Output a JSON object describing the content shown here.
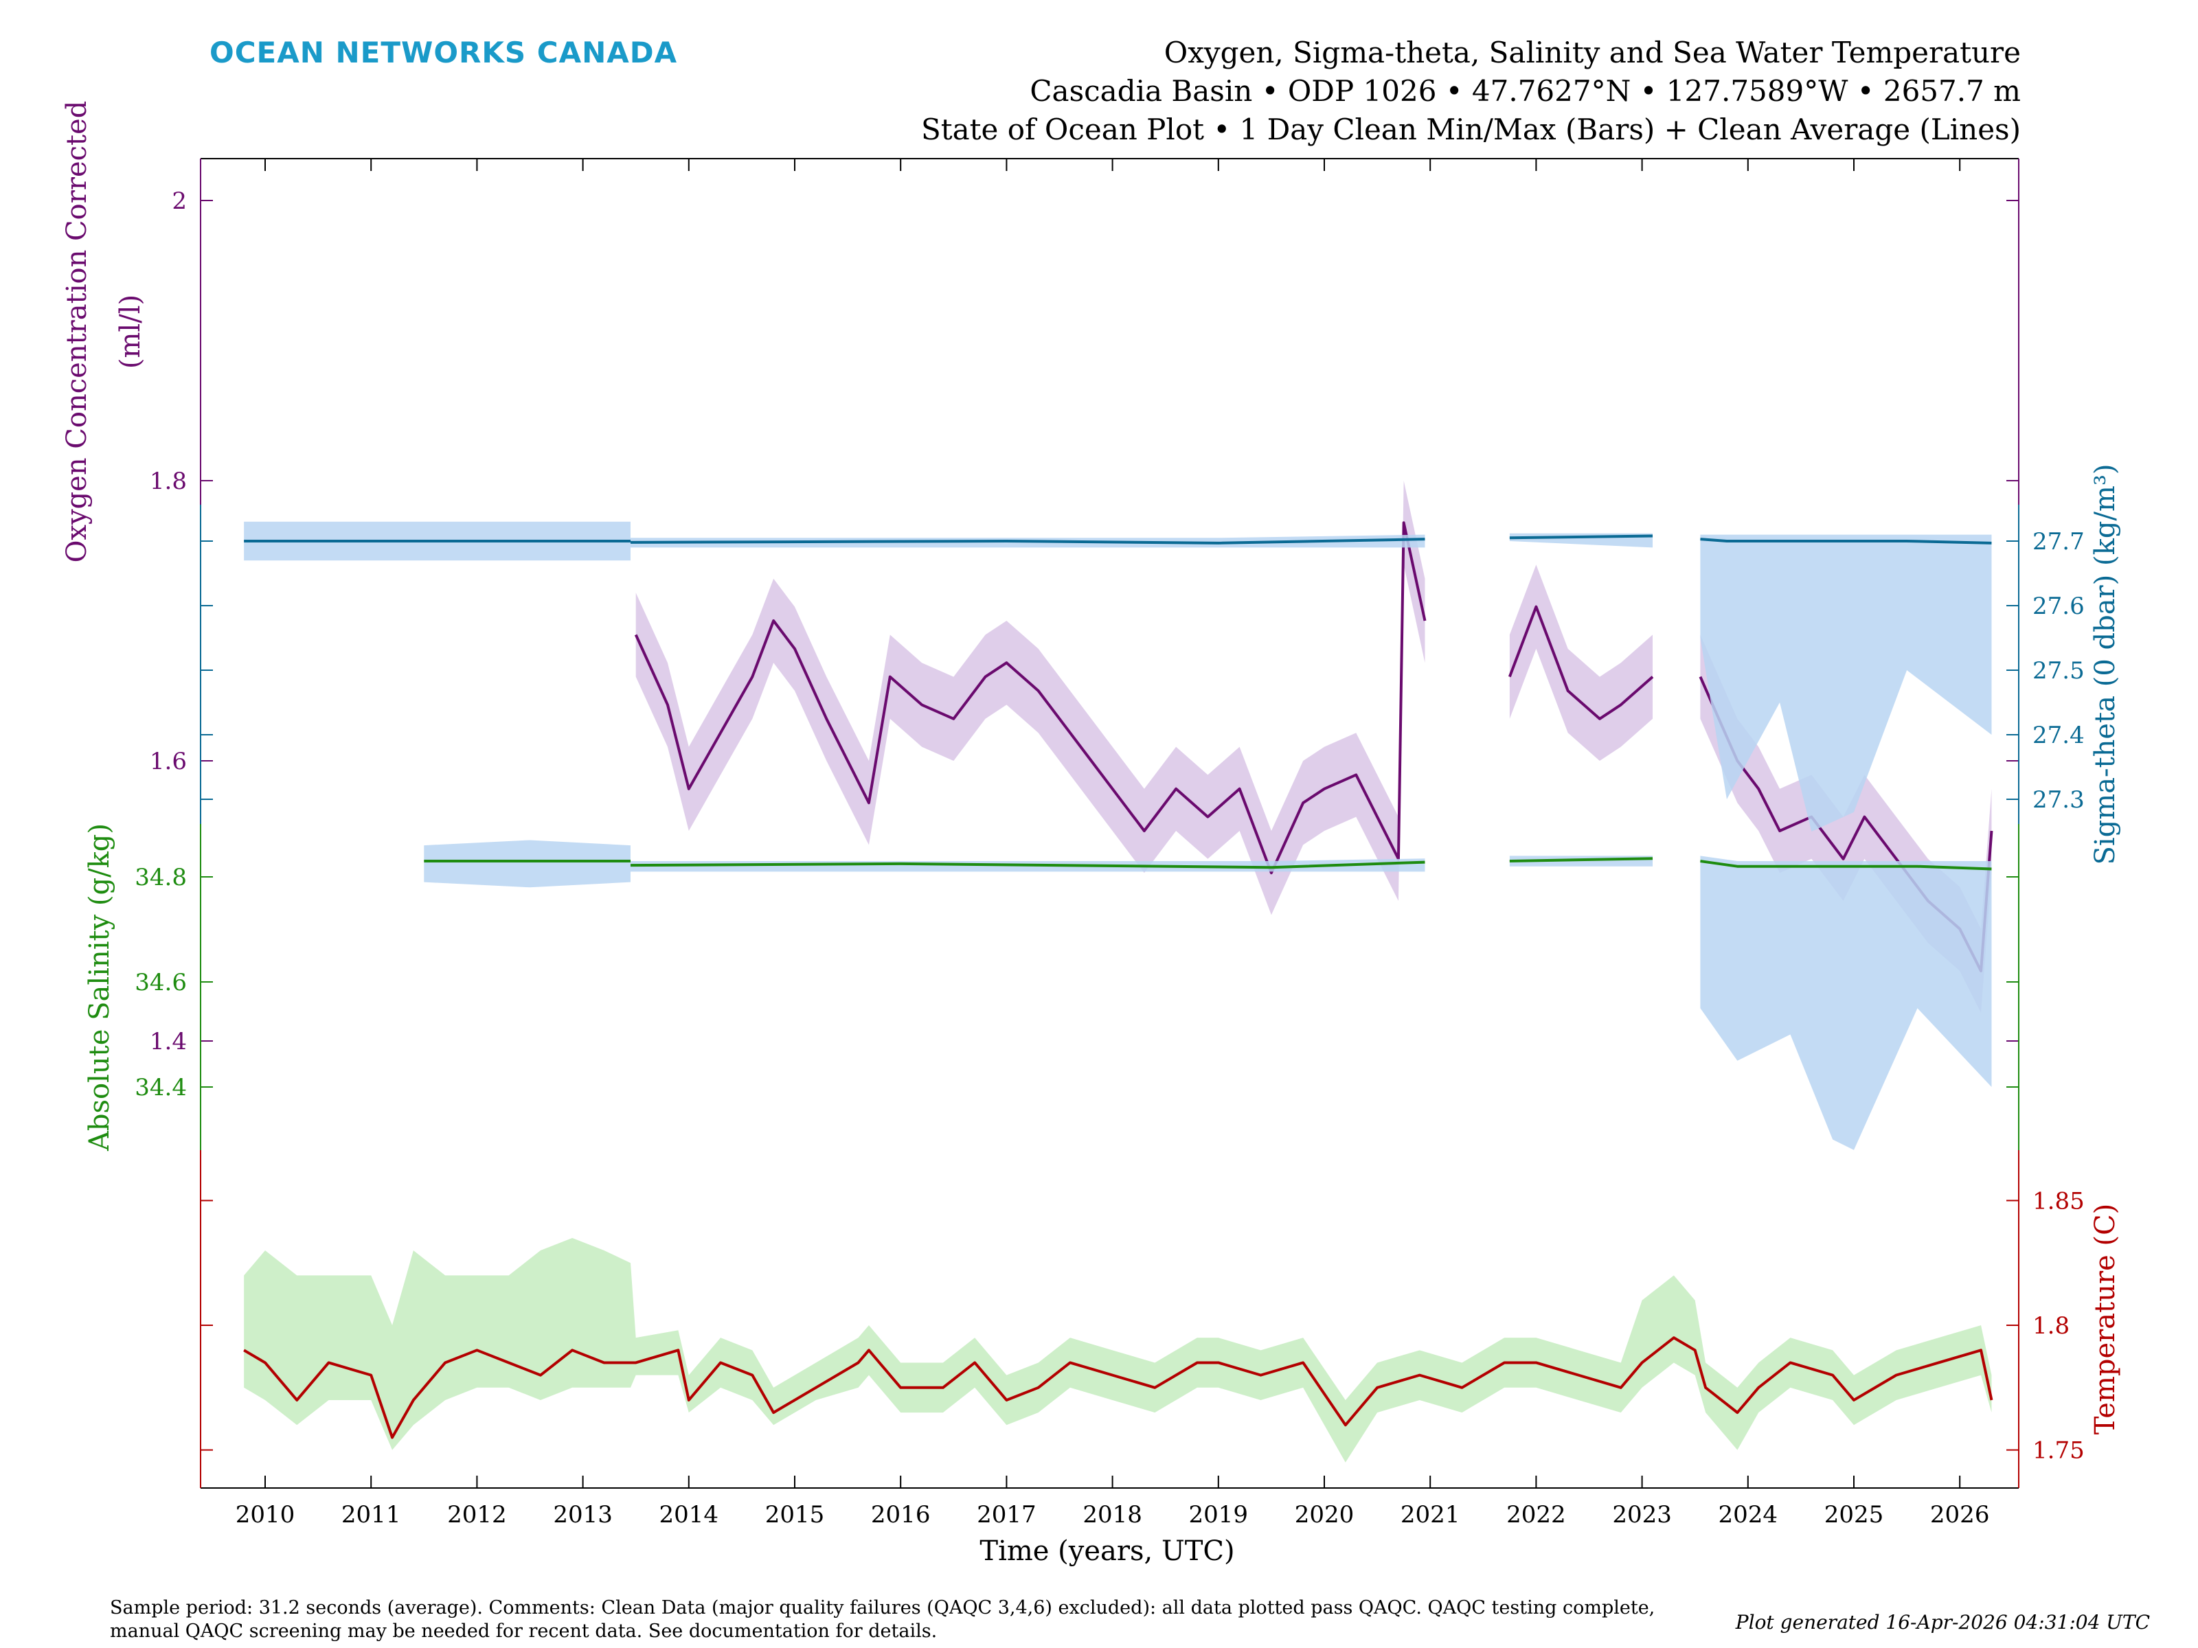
{
  "brand": "OCEAN NETWORKS CANADA",
  "titles": [
    "Oxygen, Sigma-theta, Salinity and Sea Water Temperature",
    "Cascadia Basin • ODP 1026 • 47.7627°N • 127.7589°W • 2657.7 m",
    "State of Ocean Plot • 1 Day Clean Min/Max (Bars) + Clean Average (Lines)"
  ],
  "footer": {
    "comment_line1": "Sample period: 31.2 seconds (average). Comments: Clean Data (major quality failures (QAQC 3,4,6) excluded): all data plotted pass QAQC. QAQC testing complete,",
    "comment_line2": "manual QAQC screening may be needed for recent data. See documentation for details.",
    "generated": "Plot generated 16-Apr-2026 04:31:04 UTC"
  },
  "chart_data": {
    "type": "line",
    "xlabel": "Time (years, UTC)",
    "xticks": [
      "2010",
      "2011",
      "2012",
      "2013",
      "2014",
      "2015",
      "2016",
      "2017",
      "2018",
      "2019",
      "2020",
      "2021",
      "2022",
      "2023",
      "2024",
      "2025",
      "2026"
    ],
    "xlim": [
      2009.4,
      2026.6
    ],
    "colors": {
      "oxygen": "#6a0a6e",
      "sigma": "#0a6a94",
      "salinity": "#1e8c10",
      "temperature": "#b30000",
      "band_blue": "#b9d5f2",
      "band_green": "#c6ecbf",
      "band_purple": "#d9c6e6",
      "brand": "#1a9ac9"
    },
    "axes": [
      {
        "key": "oxygen",
        "side": "left",
        "label": [
          "Oxygen Concentration Corrected",
          "(ml/l)"
        ],
        "ticks": [
          "1.4",
          "1.6",
          "1.8",
          "2"
        ],
        "band": "band_purple",
        "segments": [
          [
            [
              2013.5,
              1.69
            ],
            [
              2013.8,
              1.64
            ],
            [
              2014.0,
              1.58
            ],
            [
              2014.3,
              1.62
            ],
            [
              2014.6,
              1.66
            ],
            [
              2014.8,
              1.7
            ],
            [
              2015.0,
              1.68
            ],
            [
              2015.3,
              1.63
            ],
            [
              2015.5,
              1.6
            ],
            [
              2015.7,
              1.57
            ],
            [
              2015.9,
              1.66
            ],
            [
              2016.2,
              1.64
            ],
            [
              2016.5,
              1.63
            ],
            [
              2016.8,
              1.66
            ],
            [
              2017.0,
              1.67
            ],
            [
              2017.3,
              1.65
            ],
            [
              2017.6,
              1.62
            ],
            [
              2017.8,
              1.6
            ],
            [
              2018.0,
              1.58
            ],
            [
              2018.3,
              1.55
            ],
            [
              2018.6,
              1.58
            ],
            [
              2018.9,
              1.56
            ],
            [
              2019.2,
              1.58
            ],
            [
              2019.5,
              1.52
            ],
            [
              2019.8,
              1.57
            ],
            [
              2020.0,
              1.58
            ],
            [
              2020.3,
              1.59
            ],
            [
              2020.5,
              1.56
            ],
            [
              2020.7,
              1.53
            ],
            [
              2020.75,
              1.77
            ],
            [
              2020.95,
              1.7
            ]
          ],
          [
            [
              2021.75,
              1.66
            ],
            [
              2022.0,
              1.71
            ],
            [
              2022.3,
              1.65
            ],
            [
              2022.6,
              1.63
            ],
            [
              2022.8,
              1.64
            ],
            [
              2023.1,
              1.66
            ]
          ],
          [
            [
              2023.55,
              1.66
            ],
            [
              2023.9,
              1.6
            ],
            [
              2024.1,
              1.58
            ],
            [
              2024.3,
              1.55
            ],
            [
              2024.6,
              1.56
            ],
            [
              2024.9,
              1.53
            ],
            [
              2025.1,
              1.56
            ],
            [
              2025.4,
              1.53
            ],
            [
              2025.7,
              1.5
            ],
            [
              2026.0,
              1.48
            ],
            [
              2026.2,
              1.45
            ],
            [
              2026.3,
              1.55
            ]
          ]
        ],
        "spread": 0.03
      },
      {
        "key": "sigma",
        "side": "right",
        "label": [
          "Sigma-theta (0 dbar) (kg/m³)"
        ],
        "ticks": [
          "27.3",
          "27.4",
          "27.5",
          "27.6",
          "27.7"
        ],
        "band": "band_blue",
        "segments": [
          [
            [
              2009.8,
              27.7,
              27.67,
              27.73
            ],
            [
              2011.0,
              27.7,
              27.67,
              27.73
            ],
            [
              2012.0,
              27.7,
              27.67,
              27.73
            ],
            [
              2013.45,
              27.7,
              27.67,
              27.73
            ]
          ],
          [
            [
              2013.45,
              27.698,
              27.69,
              27.705
            ],
            [
              2017.0,
              27.7,
              27.69,
              27.705
            ],
            [
              2019.0,
              27.697,
              27.69,
              27.705
            ],
            [
              2020.95,
              27.703,
              27.69,
              27.71
            ]
          ],
          [
            [
              2021.75,
              27.705,
              27.7,
              27.712
            ],
            [
              2023.1,
              27.708,
              27.69,
              27.712
            ]
          ],
          [
            [
              2023.55,
              27.703,
              27.55,
              27.71
            ],
            [
              2023.8,
              27.7,
              27.3,
              27.71
            ],
            [
              2024.3,
              27.7,
              27.45,
              27.71
            ],
            [
              2024.6,
              27.7,
              27.25,
              27.71
            ],
            [
              2025.0,
              27.7,
              27.28,
              27.71
            ],
            [
              2025.5,
              27.7,
              27.5,
              27.71
            ],
            [
              2026.3,
              27.697,
              27.4,
              27.71
            ]
          ]
        ]
      },
      {
        "key": "salinity",
        "side": "left",
        "label": [
          "Absolute Salinity (g/kg)"
        ],
        "ticks": [
          "34.4",
          "34.6",
          "34.8"
        ],
        "band": "band_blue",
        "segments": [
          [
            [
              2011.5,
              34.83,
              34.79,
              34.86
            ],
            [
              2012.5,
              34.83,
              34.78,
              34.87
            ],
            [
              2013.45,
              34.83,
              34.79,
              34.86
            ]
          ],
          [
            [
              2013.45,
              34.822,
              34.81,
              34.83
            ],
            [
              2016.0,
              34.825,
              34.81,
              34.83
            ],
            [
              2019.5,
              34.818,
              34.81,
              34.83
            ],
            [
              2020.95,
              34.828,
              34.81,
              34.835
            ]
          ],
          [
            [
              2021.75,
              34.83,
              34.82,
              34.84
            ],
            [
              2023.1,
              34.835,
              34.82,
              34.84
            ]
          ],
          [
            [
              2023.55,
              34.83,
              34.55,
              34.84
            ],
            [
              2023.9,
              34.82,
              34.45,
              34.83
            ],
            [
              2024.4,
              34.82,
              34.5,
              34.83
            ],
            [
              2024.8,
              34.82,
              34.3,
              34.83
            ],
            [
              2025.0,
              34.82,
              34.28,
              34.83
            ],
            [
              2025.6,
              34.82,
              34.55,
              34.83
            ],
            [
              2026.3,
              34.815,
              34.4,
              34.83
            ]
          ]
        ]
      },
      {
        "key": "temperature",
        "side": "right",
        "label": [
          "Temperature (C)"
        ],
        "ticks": [
          "1.75",
          "1.8",
          "1.85"
        ],
        "band": "band_green",
        "segments": [
          [
            [
              2009.8,
              1.79,
              1.775,
              1.82
            ],
            [
              2010.0,
              1.785,
              1.77,
              1.83
            ],
            [
              2010.3,
              1.77,
              1.76,
              1.82
            ],
            [
              2010.6,
              1.785,
              1.77,
              1.82
            ],
            [
              2011.0,
              1.78,
              1.77,
              1.82
            ],
            [
              2011.2,
              1.755,
              1.75,
              1.8
            ],
            [
              2011.4,
              1.77,
              1.76,
              1.83
            ],
            [
              2011.7,
              1.785,
              1.77,
              1.82
            ],
            [
              2012.0,
              1.79,
              1.775,
              1.82
            ],
            [
              2012.3,
              1.785,
              1.775,
              1.82
            ],
            [
              2012.6,
              1.78,
              1.77,
              1.83
            ],
            [
              2012.9,
              1.79,
              1.775,
              1.835
            ],
            [
              2013.2,
              1.785,
              1.775,
              1.83
            ],
            [
              2013.45,
              1.785,
              1.775,
              1.825
            ],
            [
              2013.5,
              1.785,
              1.78,
              1.795
            ],
            [
              2013.9,
              1.79,
              1.78,
              1.798
            ],
            [
              2014.0,
              1.77,
              1.765,
              1.78
            ],
            [
              2014.3,
              1.785,
              1.775,
              1.795
            ],
            [
              2014.6,
              1.78,
              1.77,
              1.79
            ],
            [
              2014.8,
              1.765,
              1.76,
              1.775
            ],
            [
              2015.2,
              1.775,
              1.77,
              1.785
            ],
            [
              2015.6,
              1.785,
              1.775,
              1.795
            ],
            [
              2015.7,
              1.79,
              1.78,
              1.8
            ],
            [
              2016.0,
              1.775,
              1.765,
              1.785
            ],
            [
              2016.4,
              1.775,
              1.765,
              1.785
            ],
            [
              2016.7,
              1.785,
              1.775,
              1.795
            ],
            [
              2017.0,
              1.77,
              1.76,
              1.78
            ],
            [
              2017.3,
              1.775,
              1.765,
              1.785
            ],
            [
              2017.6,
              1.785,
              1.775,
              1.795
            ],
            [
              2018.0,
              1.78,
              1.77,
              1.79
            ],
            [
              2018.4,
              1.775,
              1.765,
              1.785
            ],
            [
              2018.8,
              1.785,
              1.775,
              1.795
            ],
            [
              2019.0,
              1.785,
              1.775,
              1.795
            ],
            [
              2019.4,
              1.78,
              1.77,
              1.79
            ],
            [
              2019.8,
              1.785,
              1.775,
              1.795
            ],
            [
              2020.2,
              1.76,
              1.745,
              1.77
            ],
            [
              2020.5,
              1.775,
              1.765,
              1.785
            ],
            [
              2020.9,
              1.78,
              1.77,
              1.79
            ],
            [
              2021.3,
              1.775,
              1.765,
              1.785
            ],
            [
              2021.7,
              1.785,
              1.775,
              1.795
            ],
            [
              2022.0,
              1.785,
              1.775,
              1.795
            ],
            [
              2022.4,
              1.78,
              1.77,
              1.79
            ],
            [
              2022.8,
              1.775,
              1.765,
              1.785
            ],
            [
              2023.0,
              1.785,
              1.775,
              1.81
            ],
            [
              2023.3,
              1.795,
              1.785,
              1.82
            ],
            [
              2023.5,
              1.79,
              1.78,
              1.81
            ],
            [
              2023.6,
              1.775,
              1.765,
              1.785
            ],
            [
              2023.9,
              1.765,
              1.75,
              1.775
            ],
            [
              2024.1,
              1.775,
              1.765,
              1.785
            ],
            [
              2024.4,
              1.785,
              1.775,
              1.795
            ],
            [
              2024.8,
              1.78,
              1.77,
              1.79
            ],
            [
              2025.0,
              1.77,
              1.76,
              1.78
            ],
            [
              2025.4,
              1.78,
              1.77,
              1.79
            ],
            [
              2025.8,
              1.785,
              1.775,
              1.795
            ],
            [
              2026.2,
              1.79,
              1.78,
              1.8
            ],
            [
              2026.3,
              1.77,
              1.765,
              1.78
            ]
          ]
        ]
      }
    ]
  }
}
